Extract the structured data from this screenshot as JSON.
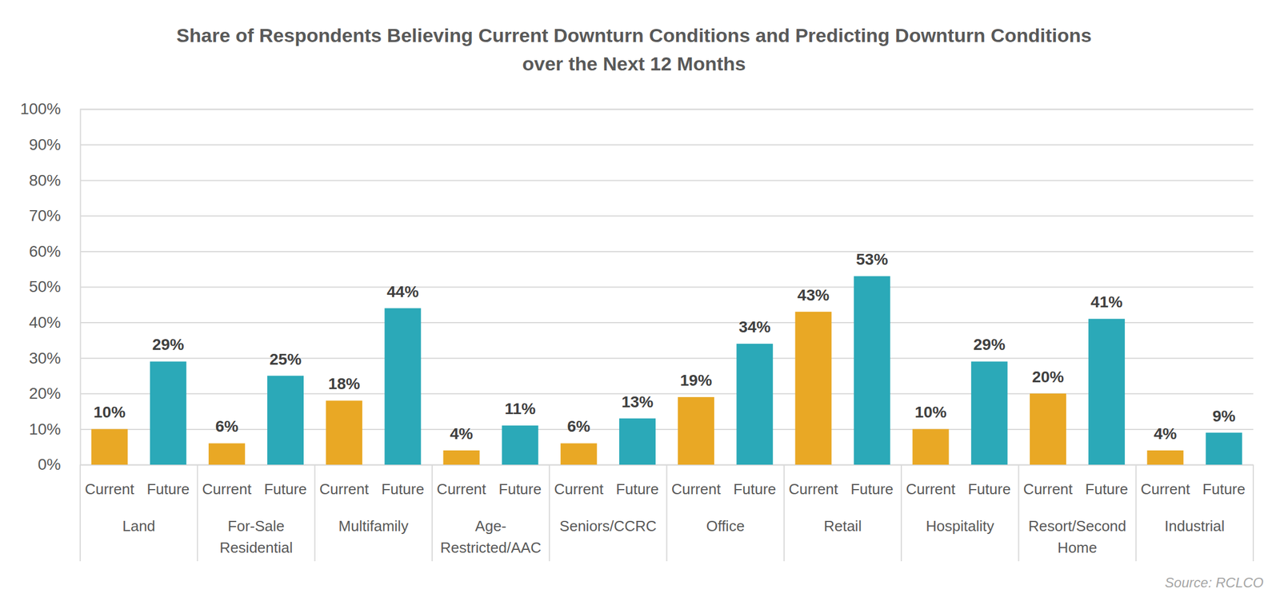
{
  "chart_data": {
    "type": "bar",
    "title": "Share of Respondents Believing Current Downturn Conditions and Predicting Downturn Conditions over the Next 12 Months",
    "categories": [
      "Land",
      "For-Sale Residential",
      "Multifamily",
      "Age-Restricted/AAC",
      "Seniors/CCRC",
      "Office",
      "Retail",
      "Hospitality",
      "Resort/Second Home",
      "Industrial"
    ],
    "series": [
      {
        "name": "Current",
        "color": "#E9A825",
        "values": [
          10,
          6,
          18,
          4,
          6,
          19,
          43,
          10,
          20,
          4
        ],
        "value_labels": [
          "10%",
          "6%",
          "18%",
          "4%",
          "6%",
          "19%",
          "43%",
          "10%",
          "20%",
          "4%"
        ]
      },
      {
        "name": "Future",
        "color": "#2BA9B8",
        "values": [
          29,
          25,
          44,
          11,
          13,
          34,
          53,
          29,
          41,
          9
        ],
        "value_labels": [
          "29%",
          "25%",
          "44%",
          "11%",
          "13%",
          "34%",
          "53%",
          "29%",
          "41%",
          "9%"
        ]
      }
    ],
    "ylim": [
      0,
      100
    ],
    "yticks": [
      {
        "value": 0,
        "label": "0%"
      },
      {
        "value": 10,
        "label": "10%"
      },
      {
        "value": 20,
        "label": "20%"
      },
      {
        "value": 30,
        "label": "30%"
      },
      {
        "value": 40,
        "label": "40%"
      },
      {
        "value": 50,
        "label": "50%"
      },
      {
        "value": 60,
        "label": "60%"
      },
      {
        "value": 70,
        "label": "70%"
      },
      {
        "value": 80,
        "label": "80%"
      },
      {
        "value": 90,
        "label": "90%"
      },
      {
        "value": 100,
        "label": "100%"
      }
    ],
    "grid": true,
    "data_labels": true,
    "annotations": [
      "Source: RCLCO"
    ]
  }
}
